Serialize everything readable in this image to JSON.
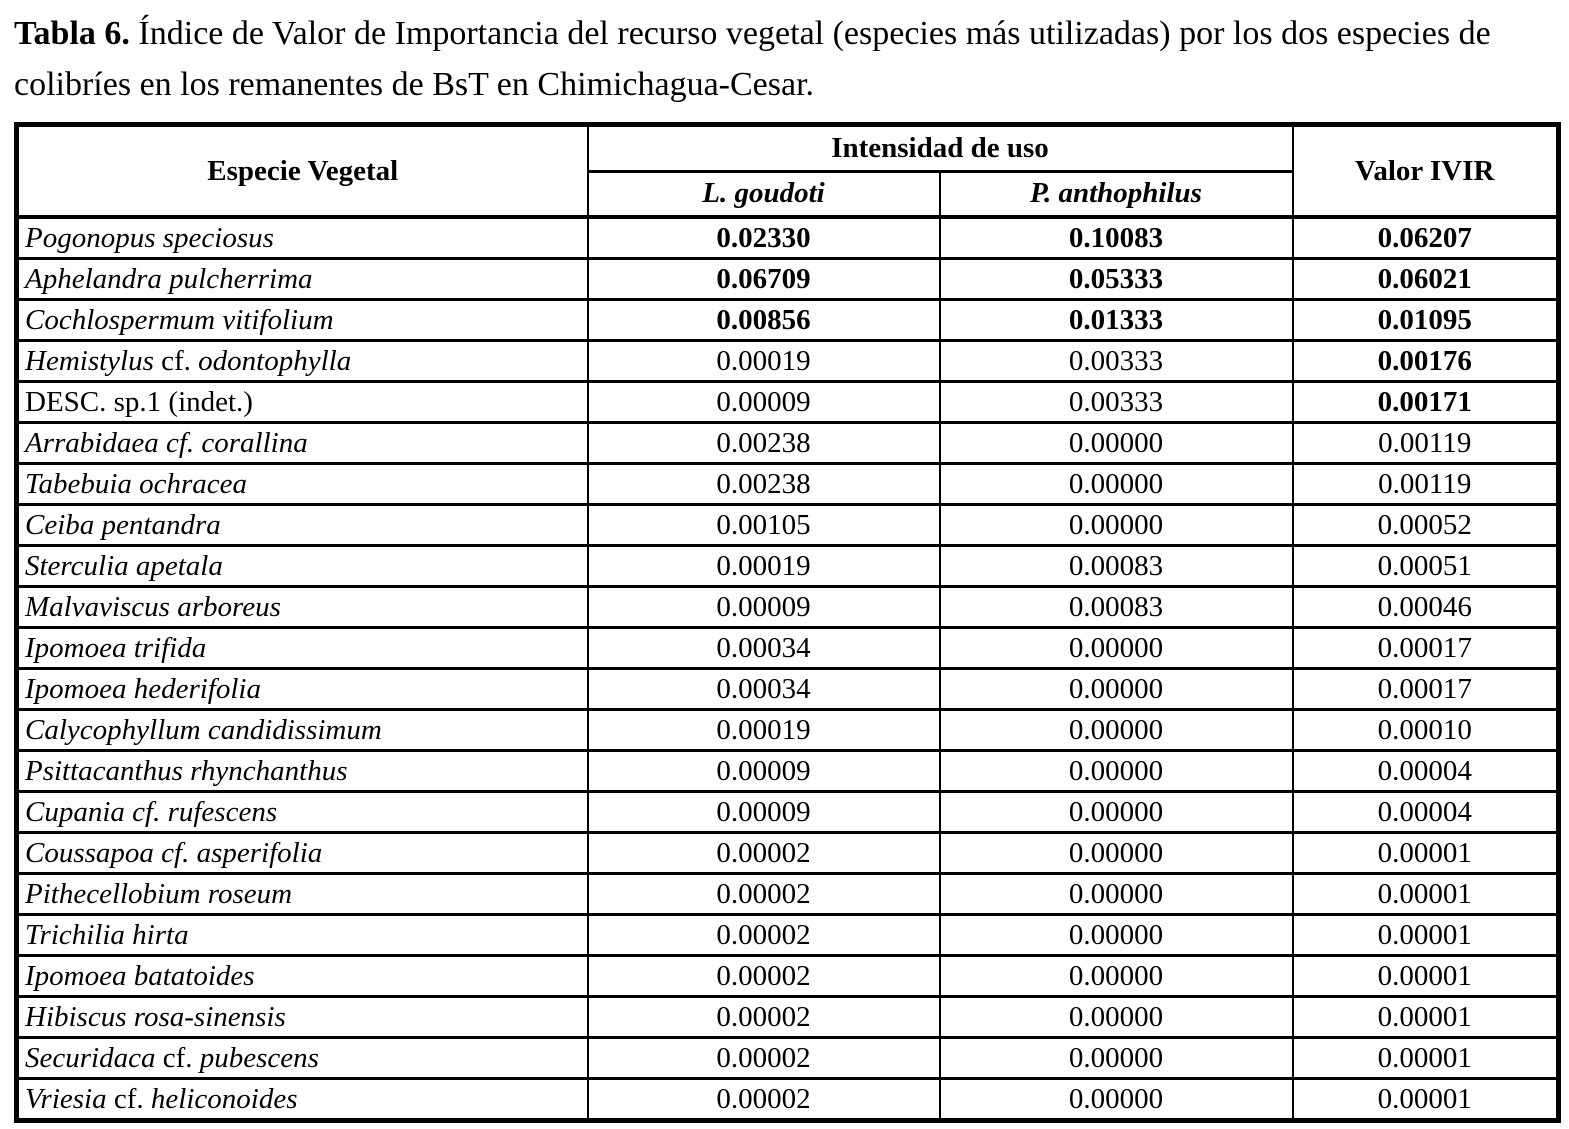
{
  "title": {
    "label": "Tabla 6.",
    "text": " Índice de Valor de Importancia del recurso vegetal (especies más utilizadas) por los dos especies de colibríes en los remanentes de BsT en Chimichagua-Cesar."
  },
  "table": {
    "headers": {
      "species": "Especie Vegetal",
      "intensity": "Intensidad de uso",
      "goudoti": "L. goudoti",
      "anthophilus": "P. anthophilus",
      "ivir": "Valor IVIR"
    },
    "rows": [
      {
        "name_parts": [
          {
            "text": "Pogonopus speciosus",
            "italic": true
          }
        ],
        "goudoti": "0.02330",
        "anthophilus": "0.10083",
        "ivir": "0.06207",
        "values_bold": true,
        "ivir_bold": true
      },
      {
        "name_parts": [
          {
            "text": "Aphelandra pulcherrima",
            "italic": true
          }
        ],
        "goudoti": "0.06709",
        "anthophilus": "0.05333",
        "ivir": "0.06021",
        "values_bold": true,
        "ivir_bold": true
      },
      {
        "name_parts": [
          {
            "text": "Cochlospermum vitifolium",
            "italic": true
          }
        ],
        "goudoti": "0.00856",
        "anthophilus": "0.01333",
        "ivir": "0.01095",
        "values_bold": true,
        "ivir_bold": true
      },
      {
        "name_parts": [
          {
            "text": "Hemistylus ",
            "italic": true
          },
          {
            "text": "cf. ",
            "italic": false
          },
          {
            "text": "odontophylla",
            "italic": true
          }
        ],
        "goudoti": "0.00019",
        "anthophilus": "0.00333",
        "ivir": "0.00176",
        "values_bold": false,
        "ivir_bold": true
      },
      {
        "name_parts": [
          {
            "text": "DESC. sp.1 (indet.)",
            "italic": false
          }
        ],
        "goudoti": "0.00009",
        "anthophilus": "0.00333",
        "ivir": "0.00171",
        "values_bold": false,
        "ivir_bold": true
      },
      {
        "name_parts": [
          {
            "text": "Arrabidaea cf. corallina",
            "italic": true
          }
        ],
        "goudoti": "0.00238",
        "anthophilus": "0.00000",
        "ivir": "0.00119",
        "values_bold": false,
        "ivir_bold": false
      },
      {
        "name_parts": [
          {
            "text": "Tabebuia ochracea",
            "italic": true
          }
        ],
        "goudoti": "0.00238",
        "anthophilus": "0.00000",
        "ivir": "0.00119",
        "values_bold": false,
        "ivir_bold": false
      },
      {
        "name_parts": [
          {
            "text": "Ceiba pentandra",
            "italic": true
          }
        ],
        "goudoti": "0.00105",
        "anthophilus": "0.00000",
        "ivir": "0.00052",
        "values_bold": false,
        "ivir_bold": false
      },
      {
        "name_parts": [
          {
            "text": "Sterculia apetala",
            "italic": true
          }
        ],
        "goudoti": "0.00019",
        "anthophilus": "0.00083",
        "ivir": "0.00051",
        "values_bold": false,
        "ivir_bold": false
      },
      {
        "name_parts": [
          {
            "text": "Malvaviscus arboreus",
            "italic": true
          }
        ],
        "goudoti": "0.00009",
        "anthophilus": "0.00083",
        "ivir": "0.00046",
        "values_bold": false,
        "ivir_bold": false
      },
      {
        "name_parts": [
          {
            "text": "Ipomoea trifida",
            "italic": true
          }
        ],
        "goudoti": "0.00034",
        "anthophilus": "0.00000",
        "ivir": "0.00017",
        "values_bold": false,
        "ivir_bold": false
      },
      {
        "name_parts": [
          {
            "text": "Ipomoea hederifolia",
            "italic": true
          }
        ],
        "goudoti": "0.00034",
        "anthophilus": "0.00000",
        "ivir": "0.00017",
        "values_bold": false,
        "ivir_bold": false
      },
      {
        "name_parts": [
          {
            "text": "Calycophyllum candidissimum",
            "italic": true
          }
        ],
        "goudoti": "0.00019",
        "anthophilus": "0.00000",
        "ivir": "0.00010",
        "values_bold": false,
        "ivir_bold": false
      },
      {
        "name_parts": [
          {
            "text": "Psittacanthus rhynchanthus",
            "italic": true
          }
        ],
        "goudoti": "0.00009",
        "anthophilus": "0.00000",
        "ivir": "0.00004",
        "values_bold": false,
        "ivir_bold": false
      },
      {
        "name_parts": [
          {
            "text": "Cupania cf. rufescens",
            "italic": true
          }
        ],
        "goudoti": "0.00009",
        "anthophilus": "0.00000",
        "ivir": "0.00004",
        "values_bold": false,
        "ivir_bold": false
      },
      {
        "name_parts": [
          {
            "text": "Coussapoa cf. asperifolia",
            "italic": true
          }
        ],
        "goudoti": "0.00002",
        "anthophilus": "0.00000",
        "ivir": "0.00001",
        "values_bold": false,
        "ivir_bold": false
      },
      {
        "name_parts": [
          {
            "text": "Pithecellobium roseum",
            "italic": true
          }
        ],
        "goudoti": "0.00002",
        "anthophilus": "0.00000",
        "ivir": "0.00001",
        "values_bold": false,
        "ivir_bold": false
      },
      {
        "name_parts": [
          {
            "text": "Trichilia hirta",
            "italic": true
          }
        ],
        "goudoti": "0.00002",
        "anthophilus": "0.00000",
        "ivir": "0.00001",
        "values_bold": false,
        "ivir_bold": false
      },
      {
        "name_parts": [
          {
            "text": "Ipomoea batatoides",
            "italic": true
          }
        ],
        "goudoti": "0.00002",
        "anthophilus": "0.00000",
        "ivir": "0.00001",
        "values_bold": false,
        "ivir_bold": false
      },
      {
        "name_parts": [
          {
            "text": "Hibiscus rosa-sinensis",
            "italic": true
          }
        ],
        "goudoti": "0.00002",
        "anthophilus": "0.00000",
        "ivir": "0.00001",
        "values_bold": false,
        "ivir_bold": false
      },
      {
        "name_parts": [
          {
            "text": "Securidaca ",
            "italic": true
          },
          {
            "text": "cf. ",
            "italic": false
          },
          {
            "text": "pubescens",
            "italic": true
          }
        ],
        "goudoti": "0.00002",
        "anthophilus": "0.00000",
        "ivir": "0.00001",
        "values_bold": false,
        "ivir_bold": false
      },
      {
        "name_parts": [
          {
            "text": "Vriesia ",
            "italic": true
          },
          {
            "text": "cf. ",
            "italic": false
          },
          {
            "text": "heliconoides",
            "italic": true
          }
        ],
        "goudoti": "0.00002",
        "anthophilus": "0.00000",
        "ivir": "0.00001",
        "values_bold": false,
        "ivir_bold": false
      }
    ]
  },
  "colors": {
    "text": "#000000",
    "background": "#ffffff",
    "border": "#000000"
  }
}
